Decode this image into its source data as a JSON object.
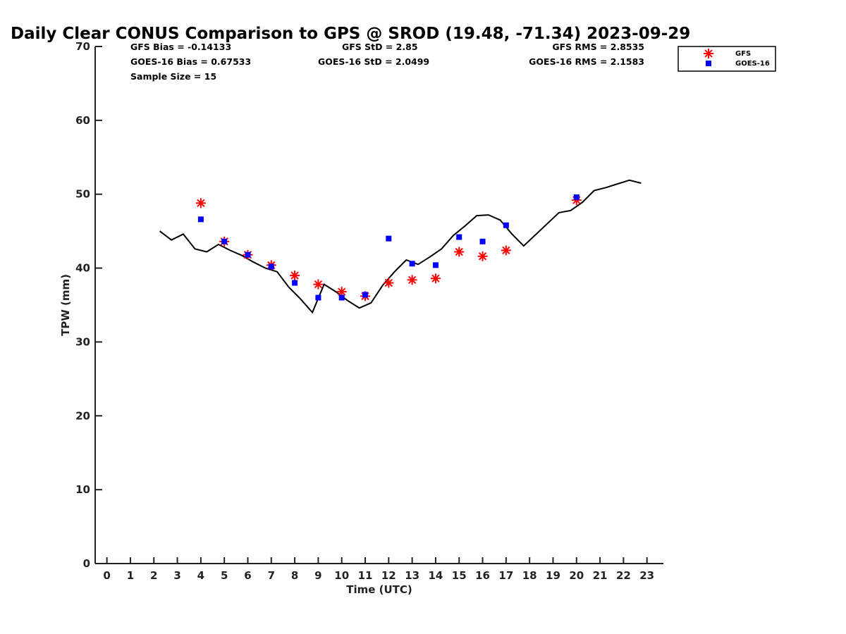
{
  "chart_data": {
    "type": "scatter",
    "title": "Daily Clear CONUS Comparison to GPS @ SROD (19.48, -71.34) 2023-09-29",
    "xlabel": "Time (UTC)",
    "ylabel": "TPW (mm)",
    "xlim": [
      -0.5,
      23.7
    ],
    "ylim": [
      0,
      70
    ],
    "xticks": [
      0,
      1,
      2,
      3,
      4,
      5,
      6,
      7,
      8,
      9,
      10,
      11,
      12,
      13,
      14,
      15,
      16,
      17,
      18,
      19,
      20,
      21,
      22,
      23
    ],
    "yticks": [
      0,
      10,
      20,
      30,
      40,
      50,
      60,
      70
    ],
    "stats": {
      "gfs_bias": "GFS Bias = -0.14133",
      "goes_bias": "GOES-16 Bias = 0.67533",
      "sample_size": "Sample Size = 15",
      "gfs_std": "GFS StD = 2.85",
      "goes_std": "GOES-16 StD = 2.0499",
      "gfs_rms": "GFS RMS = 2.8535",
      "goes_rms": "GOES-16 RMS = 2.1583"
    },
    "legend": {
      "placement": "top-right outside",
      "entries": [
        "GFS",
        "GOES-16"
      ]
    },
    "series": [
      {
        "name": "GFS",
        "marker": "asterisk",
        "color": "#ff0000",
        "points": [
          [
            4,
            48.8
          ],
          [
            5,
            43.6
          ],
          [
            6,
            41.8
          ],
          [
            7,
            40.4
          ],
          [
            8,
            39.0
          ],
          [
            9,
            37.8
          ],
          [
            10,
            36.8
          ],
          [
            11,
            36.2
          ],
          [
            12,
            38.0
          ],
          [
            13,
            38.4
          ],
          [
            14,
            38.6
          ],
          [
            15,
            42.2
          ],
          [
            16,
            41.6
          ],
          [
            17,
            42.4
          ],
          [
            20,
            49.2
          ]
        ]
      },
      {
        "name": "GOES-16",
        "marker": "square",
        "color": "#0000ff",
        "points": [
          [
            4,
            46.6
          ],
          [
            5,
            43.6
          ],
          [
            6,
            41.8
          ],
          [
            7,
            40.2
          ],
          [
            8,
            38.0
          ],
          [
            9,
            36.0
          ],
          [
            10,
            36.0
          ],
          [
            11,
            36.4
          ],
          [
            12,
            44.0
          ],
          [
            13,
            40.6
          ],
          [
            14,
            40.4
          ],
          [
            15,
            44.2
          ],
          [
            16,
            43.6
          ],
          [
            17,
            45.8
          ],
          [
            20,
            49.6
          ]
        ]
      },
      {
        "name": "",
        "marker": "line",
        "color": "#000000",
        "points": [
          [
            2.25,
            45.0
          ],
          [
            2.75,
            43.8
          ],
          [
            3.25,
            44.6
          ],
          [
            3.75,
            42.6
          ],
          [
            4.25,
            42.2
          ],
          [
            4.75,
            43.2
          ],
          [
            5.25,
            42.4
          ],
          [
            5.75,
            41.7
          ],
          [
            6.25,
            40.8
          ],
          [
            6.75,
            40.0
          ],
          [
            7.25,
            39.5
          ],
          [
            7.75,
            37.4
          ],
          [
            8.25,
            35.8
          ],
          [
            8.75,
            34.0
          ],
          [
            9.25,
            37.8
          ],
          [
            9.75,
            36.8
          ],
          [
            10.25,
            35.6
          ],
          [
            10.75,
            34.6
          ],
          [
            11.25,
            35.3
          ],
          [
            11.75,
            37.7
          ],
          [
            12.25,
            39.5
          ],
          [
            12.75,
            41.1
          ],
          [
            13.25,
            40.5
          ],
          [
            13.75,
            41.5
          ],
          [
            14.25,
            42.6
          ],
          [
            14.75,
            44.4
          ],
          [
            15.25,
            45.7
          ],
          [
            15.75,
            47.1
          ],
          [
            16.25,
            47.2
          ],
          [
            16.75,
            46.5
          ],
          [
            17.25,
            44.6
          ],
          [
            17.75,
            43.0
          ],
          [
            18.25,
            44.5
          ],
          [
            18.75,
            46.0
          ],
          [
            19.25,
            47.5
          ],
          [
            19.75,
            47.8
          ],
          [
            20.25,
            48.9
          ],
          [
            20.75,
            50.5
          ],
          [
            21.25,
            50.9
          ],
          [
            21.75,
            51.4
          ],
          [
            22.25,
            51.9
          ],
          [
            22.75,
            51.5
          ]
        ]
      }
    ]
  }
}
